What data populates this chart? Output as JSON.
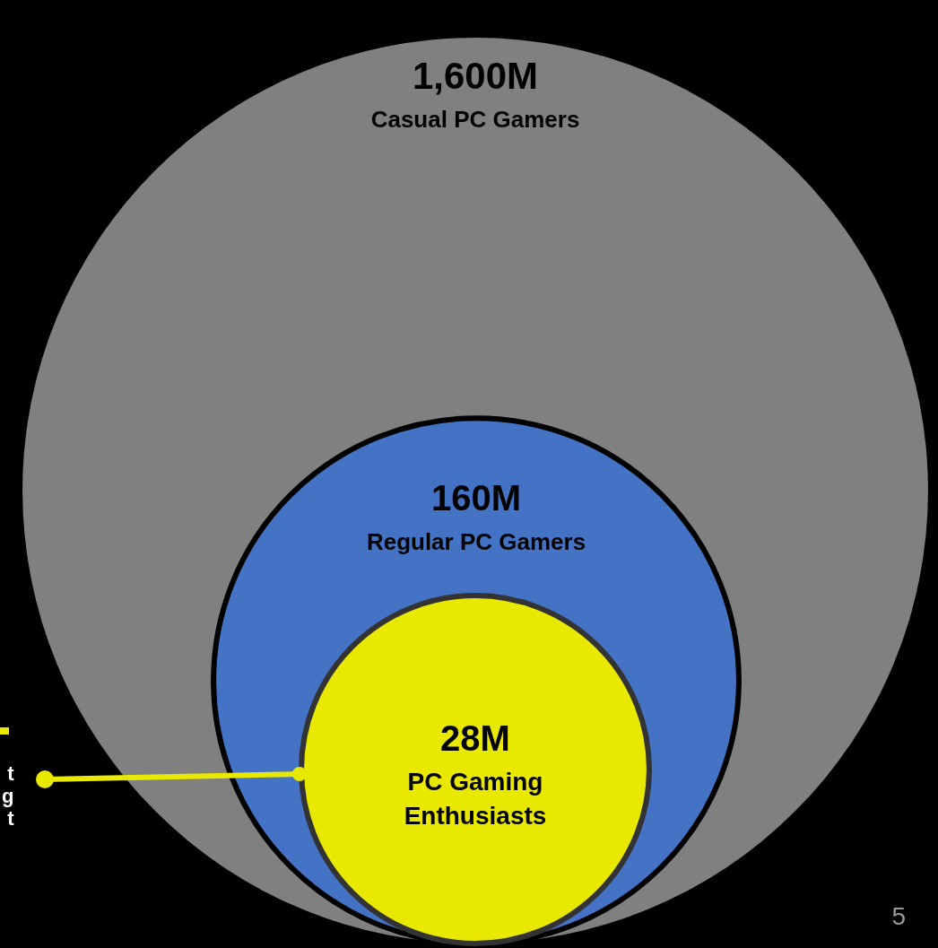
{
  "chart_data": {
    "type": "other",
    "categories": [
      "Casual PC Gamers",
      "Regular PC Gamers",
      "PC Gaming Enthusiasts"
    ],
    "value_labels": [
      "1,600M",
      "160M",
      "28M"
    ],
    "values": [
      1600,
      160,
      28
    ],
    "colors": [
      "#808080",
      "#4472c4",
      "#e8e800"
    ],
    "annotations": [
      "t\ng\nt",
      "5"
    ]
  }
}
